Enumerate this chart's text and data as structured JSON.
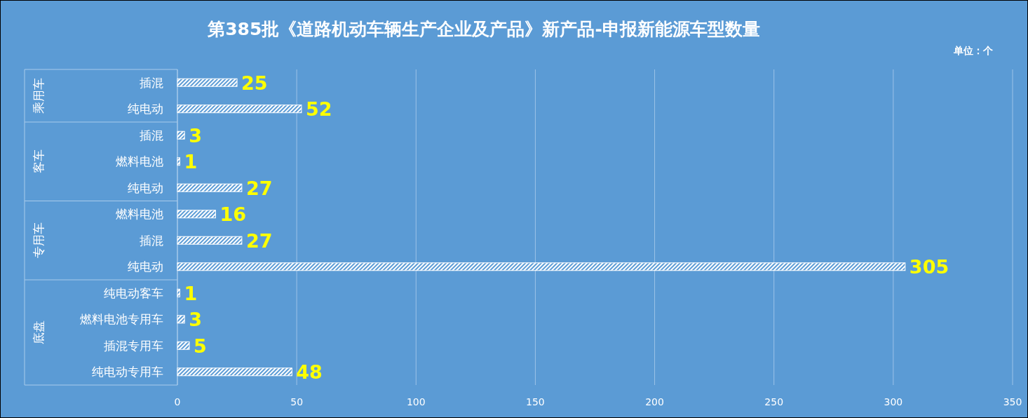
{
  "chart_data": {
    "type": "bar",
    "orientation": "horizontal",
    "title": "第385批《道路机动车辆生产企业及产品》新产品-申报新能源车型数量",
    "categories": [
      "插混",
      "纯电动",
      "插混",
      "燃料电池",
      "纯电动",
      "燃料电池",
      "插混",
      "纯电动",
      "纯电动客车",
      "燃料电池专用车",
      "插混专用车",
      "纯电动专用车"
    ],
    "series": [
      {
        "color": "#ffffff",
        "values": [
          25,
          52,
          3,
          1,
          27,
          16,
          27,
          305,
          1,
          3,
          5,
          48
        ]
      }
    ],
    "xlim": [
      0,
      350
    ],
    "xticks": [
      0,
      50,
      100,
      150,
      200,
      250,
      300,
      350
    ],
    "grid": "x",
    "data_labels": true,
    "annotations": [
      "单位：个",
      "乘用车",
      "客车",
      "专用车",
      "底盘"
    ]
  }
}
